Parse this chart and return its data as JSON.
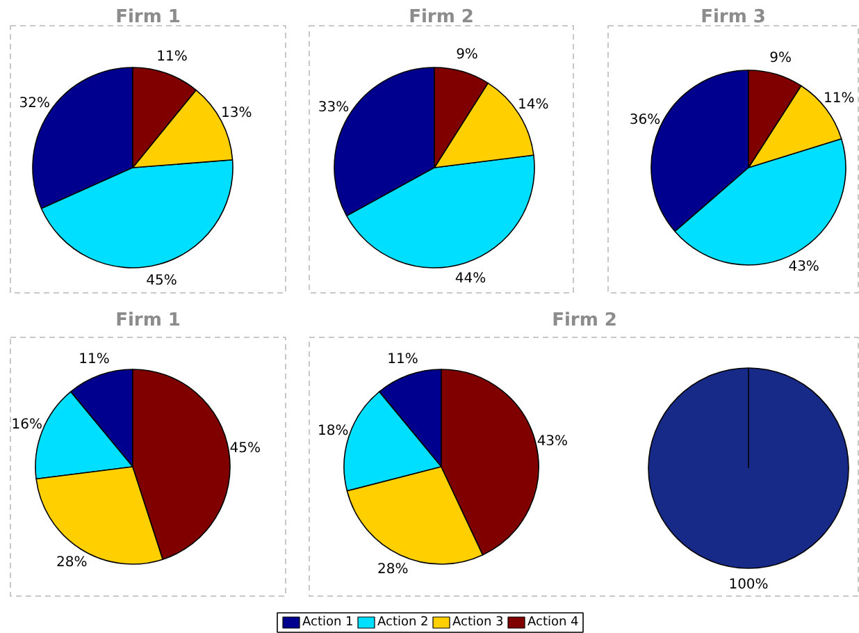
{
  "chart_data": [
    {
      "type": "pie",
      "title": "Firm 1",
      "categories": [
        "Action 1",
        "Action 2",
        "Action 3",
        "Action 4"
      ],
      "values": [
        32,
        45,
        13,
        11
      ],
      "colors": [
        "#00008f",
        "#00dfff",
        "#ffcf00",
        "#800000"
      ],
      "value_labels": [
        "32%",
        "45%",
        "13%",
        "11%"
      ],
      "legend": "bottom"
    },
    {
      "type": "pie",
      "title": "Firm 2",
      "categories": [
        null,
        null,
        null,
        null
      ],
      "values": [
        33,
        44,
        14,
        9
      ],
      "colors": [
        "#00008f",
        "#00dfff",
        "#ffcf00",
        "#800000"
      ],
      "value_labels": [
        "33%",
        "44%",
        "14%",
        "9%"
      ]
    },
    {
      "type": "pie",
      "title": "Firm 3",
      "categories": [
        null,
        null,
        null,
        null
      ],
      "values": [
        36,
        43,
        11,
        9
      ],
      "colors": [
        "#00008f",
        "#00dfff",
        "#ffcf00",
        "#800000"
      ],
      "value_labels": [
        "36%",
        "43%",
        "11%",
        "9%"
      ]
    },
    {
      "type": "pie",
      "title": "Firm 1",
      "categories": [
        null,
        null,
        null,
        null
      ],
      "values": [
        11,
        16,
        28,
        45
      ],
      "colors": [
        "#00008f",
        "#00dfff",
        "#ffcf00",
        "#800000"
      ],
      "value_labels": [
        "11%",
        "16%",
        "28%",
        "45%"
      ]
    },
    {
      "type": "pie",
      "title": "Firm 2",
      "categories": [
        null,
        null,
        null,
        null
      ],
      "values": [
        11,
        18,
        28,
        43
      ],
      "colors": [
        "#00008f",
        "#00dfff",
        "#ffcf00",
        "#800000"
      ],
      "value_labels": [
        "11%",
        "18%",
        "28%",
        "43%"
      ]
    },
    {
      "type": "pie",
      "categories": [
        null
      ],
      "values": [
        100
      ],
      "colors": [
        "#172a88"
      ],
      "value_labels": [
        "100%"
      ]
    }
  ]
}
